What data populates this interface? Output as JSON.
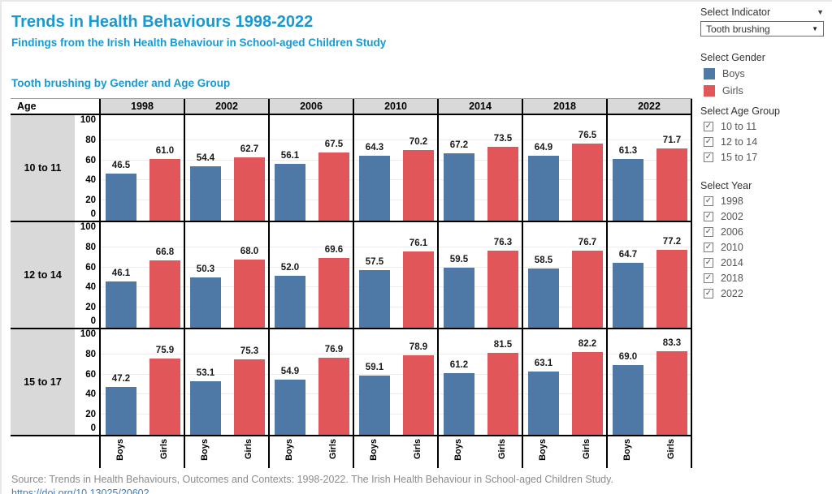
{
  "header": {
    "title": "Trends in Health Behaviours 1998-2022",
    "subtitle": "Findings from the Irish Health Behaviour in School-aged Children Study",
    "chart_title": "Tooth brushing by Gender and Age Group"
  },
  "filters": {
    "indicator": {
      "label": "Select Indicator",
      "value": "Tooth brushing"
    },
    "gender": {
      "label": "Select Gender",
      "items": [
        {
          "label": "Boys",
          "color": "#4e79a7"
        },
        {
          "label": "Girls",
          "color": "#e15759"
        }
      ]
    },
    "age_group": {
      "label": "Select Age Group",
      "options": [
        {
          "label": "10 to 11",
          "checked": true
        },
        {
          "label": "12 to 14",
          "checked": true
        },
        {
          "label": "15 to 17",
          "checked": true
        }
      ]
    },
    "year": {
      "label": "Select Year",
      "options": [
        {
          "label": "1998",
          "checked": true
        },
        {
          "label": "2002",
          "checked": true
        },
        {
          "label": "2006",
          "checked": true
        },
        {
          "label": "2010",
          "checked": true
        },
        {
          "label": "2014",
          "checked": true
        },
        {
          "label": "2018",
          "checked": true
        },
        {
          "label": "2022",
          "checked": true
        }
      ]
    }
  },
  "grid": {
    "age_header": "Age",
    "years": [
      "1998",
      "2002",
      "2006",
      "2010",
      "2014",
      "2018",
      "2022"
    ],
    "y_ticks": [
      100,
      80,
      60,
      40,
      20,
      0
    ],
    "genders": [
      "Boys",
      "Girls"
    ]
  },
  "chart_data": {
    "type": "bar",
    "title": "Tooth brushing by Gender and Age Group",
    "x": [
      "1998",
      "2002",
      "2006",
      "2010",
      "2014",
      "2018",
      "2022"
    ],
    "ylim": [
      0,
      100
    ],
    "grid": true,
    "colors": {
      "Boys": "#4e79a7",
      "Girls": "#e15759"
    },
    "facet_rows": [
      {
        "age_group": "10 to 11",
        "series": [
          {
            "name": "Boys",
            "values": [
              46.5,
              54.4,
              56.1,
              64.3,
              67.2,
              64.9,
              61.3
            ]
          },
          {
            "name": "Girls",
            "values": [
              61.0,
              62.7,
              67.5,
              70.2,
              73.5,
              76.5,
              71.7
            ]
          }
        ]
      },
      {
        "age_group": "12 to 14",
        "series": [
          {
            "name": "Boys",
            "values": [
              46.1,
              50.3,
              52.0,
              57.5,
              59.5,
              58.5,
              64.7
            ]
          },
          {
            "name": "Girls",
            "values": [
              66.8,
              68.0,
              69.6,
              76.1,
              76.3,
              76.7,
              77.2
            ]
          }
        ]
      },
      {
        "age_group": "15 to 17",
        "series": [
          {
            "name": "Boys",
            "values": [
              47.2,
              53.1,
              54.9,
              59.1,
              61.2,
              63.1,
              69.0
            ]
          },
          {
            "name": "Girls",
            "values": [
              75.9,
              75.3,
              76.9,
              78.9,
              81.5,
              82.2,
              83.3
            ]
          }
        ]
      }
    ]
  },
  "footer": {
    "source": "Source: Trends in Health Behaviours, Outcomes and Contexts: 1998-2022. The Irish Health Behaviour in School-aged Children Study.",
    "link": "https://doi.org/10.13025/20602"
  }
}
